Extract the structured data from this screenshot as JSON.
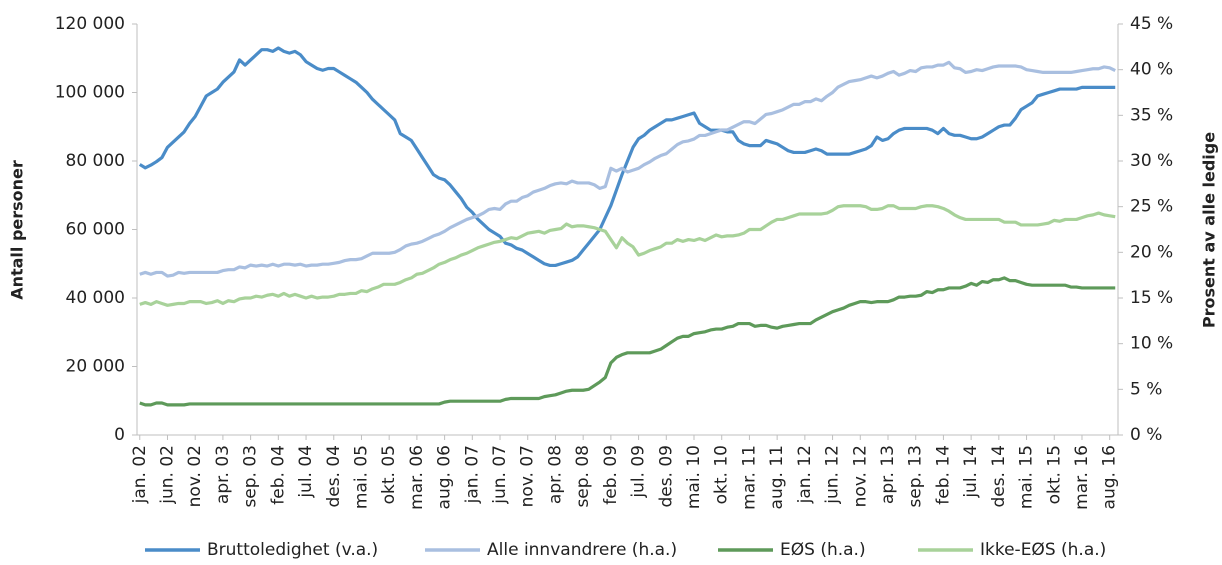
{
  "chart_data": {
    "type": "line",
    "y_label": "Antall personer",
    "y2_label": "Prosent av alle ledige",
    "categories": [
      "jan. 02",
      null,
      null,
      null,
      null,
      "jun. 02",
      null,
      null,
      null,
      null,
      "nov. 02",
      null,
      null,
      null,
      null,
      "apr. 03",
      null,
      null,
      null,
      null,
      "sep. 03",
      null,
      null,
      null,
      null,
      "feb. 04",
      null,
      null,
      null,
      null,
      "jul. 04",
      null,
      null,
      null,
      null,
      "des. 04",
      null,
      null,
      null,
      null,
      "mai. 05",
      null,
      null,
      null,
      null,
      "okt. 05",
      null,
      null,
      null,
      null,
      "mar. 06",
      null,
      null,
      null,
      null,
      "aug. 06",
      null,
      null,
      null,
      null,
      "jan. 07",
      null,
      null,
      null,
      null,
      "jun. 07",
      null,
      null,
      null,
      null,
      "nov. 07",
      null,
      null,
      null,
      null,
      "apr. 08",
      null,
      null,
      null,
      null,
      "sep. 08",
      null,
      null,
      null,
      null,
      "feb. 09",
      null,
      null,
      null,
      null,
      "jul. 09",
      null,
      null,
      null,
      null,
      "des. 09",
      null,
      null,
      null,
      null,
      "mai. 10",
      null,
      null,
      null,
      null,
      "okt. 10",
      null,
      null,
      null,
      null,
      "mar. 11",
      null,
      null,
      null,
      null,
      "aug. 11",
      null,
      null,
      null,
      null,
      "jan. 12",
      null,
      null,
      null,
      null,
      "jun. 12",
      null,
      null,
      null,
      null,
      "nov. 12",
      null,
      null,
      null,
      null,
      "apr. 13",
      null,
      null,
      null,
      null,
      "sep. 13",
      null,
      null,
      null,
      null,
      "feb. 14",
      null,
      null,
      null,
      null,
      "jul. 14",
      null,
      null,
      null,
      null,
      "des. 14",
      null,
      null,
      null,
      null,
      "mai. 15",
      null,
      null,
      null,
      null,
      "okt. 15",
      null,
      null,
      null,
      null,
      "mar. 16",
      null,
      null,
      null,
      null,
      "aug. 16",
      null
    ],
    "series": [
      {
        "name": "Bruttoledighet (v.a.)",
        "color": "#4a8cc8",
        "values": [
          79000,
          78000,
          78800,
          79800,
          81000,
          84000,
          85500,
          87000,
          88500,
          91000,
          93000,
          96000,
          99000,
          100000,
          101000,
          103000,
          104500,
          106000,
          109500,
          108000,
          109500,
          111000,
          112500,
          112500,
          112000,
          113000,
          112000,
          111500,
          112000,
          111000,
          109000,
          108000,
          107000,
          106500,
          107000,
          107000,
          106000,
          105000,
          104000,
          103000,
          101500,
          100000,
          98000,
          96500,
          95000,
          93500,
          92000,
          88000,
          87000,
          86000,
          83500,
          81000,
          78500,
          76000,
          75000,
          74500,
          73000,
          71000,
          69000,
          66500,
          65000,
          63000,
          61500,
          60000,
          59000,
          58000,
          56000,
          55500,
          54500,
          54000,
          53000,
          52000,
          51000,
          50000,
          49500,
          49500,
          50000,
          50500,
          51000,
          52000,
          54000,
          56000,
          58000,
          60000,
          63500,
          67000,
          71500,
          76000,
          80000,
          84000,
          86500,
          87500,
          89000,
          90000,
          91000,
          92000,
          92000,
          92500,
          93000,
          93500,
          94000,
          91000,
          90000,
          89000,
          89000,
          89000,
          88500,
          88500,
          86000,
          85000,
          84500,
          84500,
          84500,
          86000,
          85500,
          85000,
          84000,
          83000,
          82500,
          82500,
          82500,
          83000,
          83500,
          83000,
          82000,
          82000,
          82000,
          82000,
          82000,
          82500,
          83000,
          83500,
          84500,
          87000,
          86000,
          86500,
          88000,
          89000,
          89500,
          89500,
          89500,
          89500,
          89500,
          89000,
          88000,
          89500,
          88000,
          87500,
          87500,
          87000,
          86500,
          86500,
          87000,
          88000,
          89000,
          90000,
          90500,
          90500,
          92500,
          95000,
          96000,
          97000,
          99000,
          99500,
          100000,
          100500,
          101000,
          101000,
          101000,
          101000,
          101500,
          101500,
          101500,
          101500,
          101500,
          101500,
          101500
        ]
      },
      {
        "name": "Alle innvandrere (h.a.)",
        "color": "#a9bfe0",
        "axis": "y2",
        "values": [
          17.6,
          17.8,
          17.6,
          17.8,
          17.8,
          17.4,
          17.5,
          17.8,
          17.7,
          17.8,
          17.8,
          17.8,
          17.8,
          17.8,
          17.8,
          18.0,
          18.1,
          18.1,
          18.4,
          18.3,
          18.6,
          18.5,
          18.6,
          18.5,
          18.7,
          18.5,
          18.7,
          18.7,
          18.6,
          18.7,
          18.5,
          18.6,
          18.6,
          18.7,
          18.7,
          18.8,
          18.9,
          19.1,
          19.2,
          19.2,
          19.3,
          19.6,
          19.9,
          19.9,
          19.9,
          19.9,
          20.0,
          20.3,
          20.7,
          20.9,
          21.0,
          21.2,
          21.5,
          21.8,
          22.0,
          22.3,
          22.7,
          23.0,
          23.3,
          23.6,
          23.8,
          24.0,
          24.3,
          24.7,
          24.8,
          24.7,
          25.3,
          25.6,
          25.6,
          26.0,
          26.2,
          26.6,
          26.8,
          27.0,
          27.3,
          27.5,
          27.6,
          27.5,
          27.8,
          27.6,
          27.6,
          27.6,
          27.4,
          27.0,
          27.2,
          29.2,
          28.9,
          29.2,
          28.8,
          29.0,
          29.2,
          29.6,
          29.9,
          30.3,
          30.6,
          30.8,
          31.3,
          31.8,
          32.1,
          32.2,
          32.4,
          32.8,
          32.8,
          33.0,
          33.2,
          33.4,
          33.4,
          33.7,
          34.0,
          34.3,
          34.3,
          34.1,
          34.6,
          35.1,
          35.2,
          35.4,
          35.6,
          35.9,
          36.2,
          36.2,
          36.5,
          36.5,
          36.8,
          36.6,
          37.1,
          37.5,
          38.1,
          38.4,
          38.7,
          38.8,
          38.9,
          39.1,
          39.3,
          39.1,
          39.3,
          39.6,
          39.8,
          39.4,
          39.6,
          39.9,
          39.8,
          40.2,
          40.3,
          40.3,
          40.5,
          40.5,
          40.8,
          40.2,
          40.1,
          39.7,
          39.8,
          40.0,
          39.9,
          40.1,
          40.3,
          40.4,
          40.4,
          40.4,
          40.4,
          40.3,
          40.0,
          39.9,
          39.8,
          39.7,
          39.7,
          39.7,
          39.7,
          39.7,
          39.7,
          39.8,
          39.9,
          40.0,
          40.1,
          40.1,
          40.3,
          40.2,
          39.9
        ]
      },
      {
        "name": "EØS (h.a.)",
        "color": "#5e9a5a",
        "axis": "y2",
        "values": [
          3.5,
          3.3,
          3.3,
          3.5,
          3.5,
          3.3,
          3.3,
          3.3,
          3.3,
          3.4,
          3.4,
          3.4,
          3.4,
          3.4,
          3.4,
          3.4,
          3.4,
          3.4,
          3.4,
          3.4,
          3.4,
          3.4,
          3.4,
          3.4,
          3.4,
          3.4,
          3.4,
          3.4,
          3.4,
          3.4,
          3.4,
          3.4,
          3.4,
          3.4,
          3.4,
          3.4,
          3.4,
          3.4,
          3.4,
          3.4,
          3.4,
          3.4,
          3.4,
          3.4,
          3.4,
          3.4,
          3.4,
          3.4,
          3.4,
          3.4,
          3.4,
          3.4,
          3.4,
          3.4,
          3.4,
          3.6,
          3.7,
          3.7,
          3.7,
          3.7,
          3.7,
          3.7,
          3.7,
          3.7,
          3.7,
          3.7,
          3.9,
          4.0,
          4.0,
          4.0,
          4.0,
          4.0,
          4.0,
          4.2,
          4.3,
          4.4,
          4.6,
          4.8,
          4.9,
          4.9,
          4.9,
          5.0,
          5.4,
          5.8,
          6.3,
          7.9,
          8.5,
          8.8,
          9.0,
          9.0,
          9.0,
          9.0,
          9.0,
          9.2,
          9.4,
          9.8,
          10.2,
          10.6,
          10.8,
          10.8,
          11.1,
          11.2,
          11.3,
          11.5,
          11.6,
          11.6,
          11.8,
          11.9,
          12.2,
          12.2,
          12.2,
          11.9,
          12.0,
          12.0,
          11.8,
          11.7,
          11.9,
          12.0,
          12.1,
          12.2,
          12.2,
          12.2,
          12.6,
          12.9,
          13.2,
          13.5,
          13.7,
          13.9,
          14.2,
          14.4,
          14.6,
          14.6,
          14.5,
          14.6,
          14.6,
          14.6,
          14.8,
          15.1,
          15.1,
          15.2,
          15.2,
          15.3,
          15.7,
          15.6,
          15.9,
          15.9,
          16.1,
          16.1,
          16.1,
          16.3,
          16.6,
          16.4,
          16.8,
          16.7,
          17.0,
          17.0,
          17.2,
          16.9,
          16.9,
          16.7,
          16.5,
          16.4,
          16.4,
          16.4,
          16.4,
          16.4,
          16.4,
          16.4,
          16.2,
          16.2,
          16.1,
          16.1,
          16.1,
          16.1,
          16.1,
          16.1,
          16.1
        ]
      },
      {
        "name": "Ikke-EØS (h.a.)",
        "color": "#a8d29a",
        "axis": "y2",
        "values": [
          14.3,
          14.5,
          14.3,
          14.6,
          14.4,
          14.2,
          14.3,
          14.4,
          14.4,
          14.6,
          14.6,
          14.6,
          14.4,
          14.5,
          14.7,
          14.4,
          14.7,
          14.6,
          14.9,
          15.0,
          15.0,
          15.2,
          15.1,
          15.3,
          15.4,
          15.2,
          15.5,
          15.2,
          15.4,
          15.2,
          15.0,
          15.2,
          15.0,
          15.1,
          15.1,
          15.2,
          15.4,
          15.4,
          15.5,
          15.5,
          15.8,
          15.7,
          16.0,
          16.2,
          16.5,
          16.5,
          16.5,
          16.7,
          17.0,
          17.2,
          17.6,
          17.7,
          18.0,
          18.3,
          18.7,
          18.9,
          19.2,
          19.4,
          19.7,
          19.9,
          20.2,
          20.5,
          20.7,
          20.9,
          21.1,
          21.2,
          21.4,
          21.6,
          21.5,
          21.8,
          22.1,
          22.2,
          22.3,
          22.1,
          22.4,
          22.5,
          22.6,
          23.1,
          22.8,
          22.9,
          22.9,
          22.8,
          22.7,
          22.5,
          22.3,
          21.4,
          20.5,
          21.6,
          21.0,
          20.6,
          19.7,
          19.9,
          20.2,
          20.4,
          20.6,
          21.0,
          21.0,
          21.4,
          21.2,
          21.4,
          21.3,
          21.5,
          21.3,
          21.6,
          21.9,
          21.7,
          21.8,
          21.8,
          21.9,
          22.1,
          22.5,
          22.5,
          22.5,
          22.9,
          23.3,
          23.6,
          23.6,
          23.8,
          24.0,
          24.2,
          24.2,
          24.2,
          24.2,
          24.2,
          24.3,
          24.6,
          25.0,
          25.1,
          25.1,
          25.1,
          25.1,
          25.0,
          24.7,
          24.7,
          24.8,
          25.1,
          25.1,
          24.8,
          24.8,
          24.8,
          24.8,
          25.0,
          25.1,
          25.1,
          25.0,
          24.8,
          24.5,
          24.1,
          23.8,
          23.6,
          23.6,
          23.6,
          23.6,
          23.6,
          23.6,
          23.6,
          23.3,
          23.3,
          23.3,
          23.0,
          23.0,
          23.0,
          23.0,
          23.1,
          23.2,
          23.5,
          23.4,
          23.6,
          23.6,
          23.6,
          23.8,
          24.0,
          24.1,
          24.3,
          24.1,
          24.0,
          23.9
        ]
      }
    ],
    "ylim": [
      0,
      120000
    ],
    "yticks": [
      0,
      {
        "value": 20000,
        "label": "20 000"
      },
      {
        "value": 40000,
        "label": "40 000"
      },
      {
        "value": 60000,
        "label": "60 000"
      },
      {
        "value": 80000,
        "label": "80 000"
      },
      {
        "value": 100000,
        "label": "100 000"
      },
      {
        "value": 120000,
        "label": "120 000"
      }
    ],
    "y2lim": [
      0,
      45
    ],
    "y2ticks": [
      {
        "value": 0,
        "label": "0 %"
      },
      {
        "value": 5,
        "label": "5 %"
      },
      {
        "value": 10,
        "label": "10 %"
      },
      {
        "value": 15,
        "label": "15 %"
      },
      {
        "value": 20,
        "label": "20 %"
      },
      {
        "value": 25,
        "label": "25 %"
      },
      {
        "value": 30,
        "label": "30 %"
      },
      {
        "value": 35,
        "label": "35 %"
      },
      {
        "value": 40,
        "label": "40 %"
      },
      {
        "value": 45,
        "label": "45 %"
      }
    ],
    "legend": "bottom",
    "grid": false
  }
}
